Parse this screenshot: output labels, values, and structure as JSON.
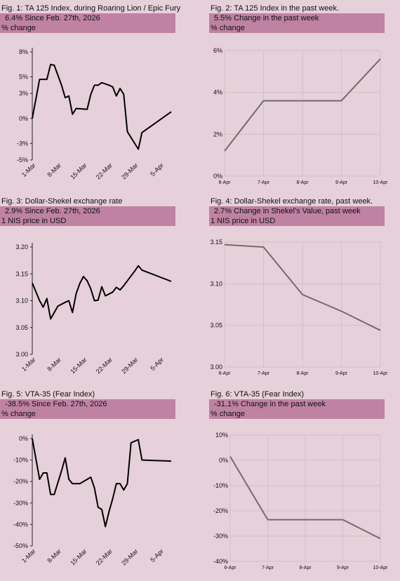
{
  "fig1": {
    "title": "Fig. 1: TA 125 Index, during Roaring Lion / Epic Fury",
    "stat": "6.4%  Since Feb. 27th, 2026",
    "unit": "% change",
    "color": "#000000",
    "chart_data": {
      "type": "line",
      "title": "Fig. 1: TA 125 Index, during Roaring Lion / Epic Fury",
      "ylabel": "% change",
      "ylim": [
        -5,
        8
      ],
      "yticks": [
        8,
        5,
        3,
        0,
        -3,
        -5
      ],
      "ytick_labels": [
        "8%",
        "5%",
        "3%",
        "0%",
        "-3%",
        "-5%"
      ],
      "xlim": [
        0,
        38
      ],
      "xticks": [
        1,
        8,
        15,
        22,
        29,
        36
      ],
      "xtick_labels": [
        "1-Mar",
        "8-Mar",
        "15-Mar",
        "22-Mar",
        "29-Mar",
        "5-Apr"
      ],
      "series": [
        {
          "values": [
            {
              "x": 0,
              "y": 0
            },
            {
              "x": 2,
              "y": 4.7
            },
            {
              "x": 3,
              "y": 4.7
            },
            {
              "x": 4,
              "y": 4.7
            },
            {
              "x": 5,
              "y": 6.5
            },
            {
              "x": 6,
              "y": 6.4
            },
            {
              "x": 8,
              "y": 4.0
            },
            {
              "x": 9,
              "y": 2.5
            },
            {
              "x": 10,
              "y": 2.7
            },
            {
              "x": 11,
              "y": 0.5
            },
            {
              "x": 12,
              "y": 1.2
            },
            {
              "x": 15,
              "y": 1.1
            },
            {
              "x": 16,
              "y": 2.9
            },
            {
              "x": 17,
              "y": 4.0
            },
            {
              "x": 18,
              "y": 4.0
            },
            {
              "x": 19,
              "y": 4.3
            },
            {
              "x": 21,
              "y": 4.0
            },
            {
              "x": 22,
              "y": 3.8
            },
            {
              "x": 23,
              "y": 2.7
            },
            {
              "x": 24,
              "y": 3.6
            },
            {
              "x": 25,
              "y": 2.9
            },
            {
              "x": 26,
              "y": -1.6
            },
            {
              "x": 29,
              "y": -3.7
            },
            {
              "x": 30,
              "y": -1.7
            },
            {
              "x": 38,
              "y": 0.8
            }
          ]
        }
      ]
    }
  },
  "fig2": {
    "title": "Fig. 2: TA 125 Index in the past week.",
    "stat": "5.5%  Change in the past week",
    "unit": "% change",
    "color": "#6e6e6e",
    "chart_data": {
      "type": "line",
      "title": "Fig. 2: TA 125 Index in the past week.",
      "ylabel": "% change",
      "ylim": [
        0,
        6
      ],
      "yticks": [
        6,
        4,
        2,
        0
      ],
      "ytick_labels": [
        "6%",
        "4%",
        "2%",
        "0%"
      ],
      "grid": true,
      "categories": [
        "6-Apr",
        "7-Apr",
        "8-Apr",
        "9-Apr",
        "10-Apr"
      ],
      "series": [
        {
          "values": [
            1.2,
            3.6,
            3.6,
            3.6,
            5.6
          ]
        }
      ]
    }
  },
  "fig3": {
    "title": "Fig. 3: Dollar-Shekel exchange rate",
    "stat": "2.9%  Since Feb. 27th, 2026",
    "unit": "1 NIS price in USD",
    "color": "#000000",
    "chart_data": {
      "type": "line",
      "title": "Fig. 3: Dollar-Shekel exchange rate",
      "ylabel": "1 NIS price in USD",
      "ylim": [
        3.0,
        3.2
      ],
      "yticks": [
        3.2,
        3.15,
        3.1,
        3.05,
        3.0
      ],
      "ytick_labels": [
        "3.20",
        "3.15",
        "3.10",
        "3.05",
        "3.00"
      ],
      "xlim": [
        0,
        38
      ],
      "xticks": [
        1,
        8,
        15,
        22,
        29,
        36
      ],
      "xtick_labels": [
        "1-Mar",
        "8-Mar",
        "15-Mar",
        "22-Mar",
        "29-Mar",
        "5-Apr"
      ],
      "series": [
        {
          "values": [
            {
              "x": 0,
              "y": 3.133
            },
            {
              "x": 2,
              "y": 3.1
            },
            {
              "x": 3,
              "y": 3.088
            },
            {
              "x": 4,
              "y": 3.104
            },
            {
              "x": 5,
              "y": 3.066
            },
            {
              "x": 7,
              "y": 3.09
            },
            {
              "x": 9,
              "y": 3.097
            },
            {
              "x": 10,
              "y": 3.1
            },
            {
              "x": 11,
              "y": 3.078
            },
            {
              "x": 12,
              "y": 3.113
            },
            {
              "x": 13,
              "y": 3.132
            },
            {
              "x": 14,
              "y": 3.145
            },
            {
              "x": 15,
              "y": 3.137
            },
            {
              "x": 16,
              "y": 3.122
            },
            {
              "x": 17,
              "y": 3.1
            },
            {
              "x": 18,
              "y": 3.101
            },
            {
              "x": 19,
              "y": 3.126
            },
            {
              "x": 20,
              "y": 3.109
            },
            {
              "x": 22,
              "y": 3.116
            },
            {
              "x": 23,
              "y": 3.125
            },
            {
              "x": 24,
              "y": 3.12
            },
            {
              "x": 25,
              "y": 3.128
            },
            {
              "x": 26,
              "y": 3.137
            },
            {
              "x": 28,
              "y": 3.155
            },
            {
              "x": 29,
              "y": 3.165
            },
            {
              "x": 30,
              "y": 3.157
            },
            {
              "x": 38,
              "y": 3.136
            }
          ]
        }
      ]
    }
  },
  "fig4": {
    "title": "Fig. 4: Dollar-Shekel exchange rate, past week.",
    "stat": "2.7%  Change in Shekel's Value, past week",
    "unit": "1 NIS price in USD",
    "color": "#6e6e6e",
    "chart_data": {
      "type": "line",
      "title": "Fig. 4: Dollar-Shekel exchange rate, past week.",
      "ylabel": "1 NIS price in USD",
      "ylim": [
        3.0,
        3.15
      ],
      "yticks": [
        3.15,
        3.1,
        3.05,
        3.0
      ],
      "ytick_labels": [
        "3.15",
        "3.10",
        "3.05",
        "3.00"
      ],
      "grid": true,
      "categories": [
        "6-Apr",
        "7-Apr",
        "8-Apr",
        "9-Apr",
        "10-Apr"
      ],
      "series": [
        {
          "values": [
            3.147,
            3.144,
            3.087,
            3.067,
            3.044
          ]
        }
      ]
    }
  },
  "fig5": {
    "title": "Fig. 5: VTA-35 (Fear Index)",
    "stat": "-38.5%  Since Feb. 27th, 2026",
    "unit": "% change",
    "color": "#000000",
    "chart_data": {
      "type": "line",
      "title": "Fig. 5: VTA-35 (Fear Index)",
      "ylabel": "% change",
      "ylim": [
        -50,
        0
      ],
      "yticks": [
        0,
        -10,
        -20,
        -30,
        -40,
        -50
      ],
      "ytick_labels": [
        "0%",
        "-10%",
        "-20%",
        "-30%",
        "-40%",
        "-50%"
      ],
      "xlim": [
        0,
        38
      ],
      "xticks": [
        1,
        8,
        15,
        22,
        29,
        36
      ],
      "xtick_labels": [
        "1-Mar",
        "8-Mar",
        "15-Mar",
        "22-Mar",
        "29-Mar",
        "5-Apr"
      ],
      "series": [
        {
          "values": [
            {
              "x": 0,
              "y": 0
            },
            {
              "x": 2,
              "y": -19
            },
            {
              "x": 3,
              "y": -16
            },
            {
              "x": 4,
              "y": -16
            },
            {
              "x": 5,
              "y": -26
            },
            {
              "x": 6,
              "y": -26
            },
            {
              "x": 8,
              "y": -15
            },
            {
              "x": 9,
              "y": -9
            },
            {
              "x": 10,
              "y": -19
            },
            {
              "x": 11,
              "y": -21
            },
            {
              "x": 13,
              "y": -21
            },
            {
              "x": 15,
              "y": -19
            },
            {
              "x": 16,
              "y": -18
            },
            {
              "x": 17,
              "y": -23
            },
            {
              "x": 18,
              "y": -32
            },
            {
              "x": 19,
              "y": -33
            },
            {
              "x": 20,
              "y": -41
            },
            {
              "x": 21,
              "y": -34
            },
            {
              "x": 22,
              "y": -28
            },
            {
              "x": 23,
              "y": -21
            },
            {
              "x": 24,
              "y": -21
            },
            {
              "x": 25,
              "y": -24
            },
            {
              "x": 26,
              "y": -21
            },
            {
              "x": 27,
              "y": -2
            },
            {
              "x": 29,
              "y": -0.5
            },
            {
              "x": 30,
              "y": -10
            },
            {
              "x": 38,
              "y": -10.5
            }
          ]
        }
      ]
    }
  },
  "fig6": {
    "title": "Fig. 6: VTA-35 (Fear Index)",
    "stat": "-31.1%  Change in the past week",
    "unit": "% change",
    "color": "#6e6e6e",
    "chart_data": {
      "type": "line",
      "title": "Fig. 6: VTA-35 (Fear Index)",
      "ylabel": "% change",
      "ylim": [
        -40,
        10
      ],
      "yticks": [
        10,
        0,
        -10,
        -20,
        -30,
        -40
      ],
      "ytick_labels": [
        "10%",
        "0%",
        "-10%",
        "-20%",
        "-30%",
        "-40%"
      ],
      "grid": true,
      "categories": [
        "6-Apr",
        "7-Apr",
        "8-Apr",
        "9-Apr",
        "10-Apr"
      ],
      "series": [
        {
          "values": [
            1.5,
            -23.5,
            -23.5,
            -23.5,
            -31
          ]
        }
      ]
    }
  }
}
